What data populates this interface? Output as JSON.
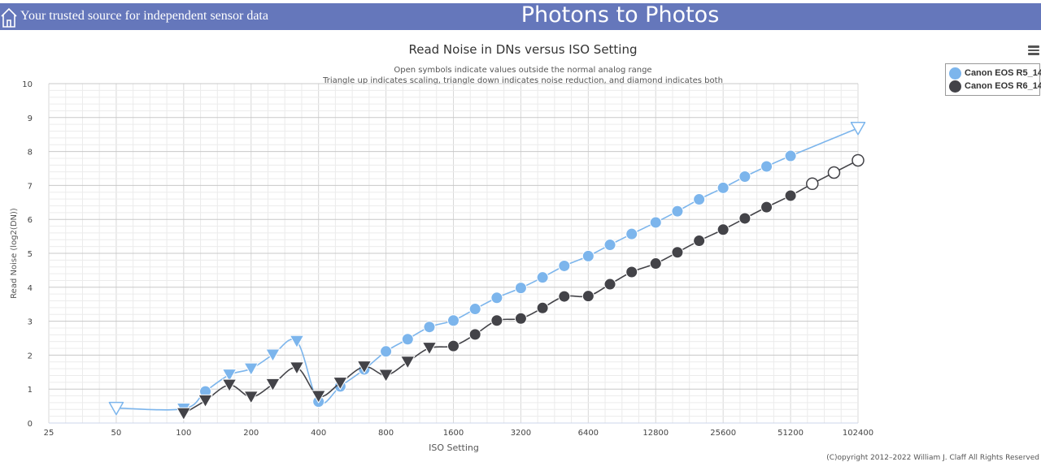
{
  "header": {
    "tagline": "Your trusted source for independent sensor data",
    "site_title": "Photons to Photos"
  },
  "copyright": "(C)opyright 2012–2022 William J. Claff All Rights Reserved",
  "colors": {
    "banner": "#6577bb",
    "r5": "#7cb5ec",
    "r6": "#434348"
  },
  "chart_data": {
    "type": "line",
    "title": "Read Noise in DNs versus ISO Setting",
    "subtitle_lines": [
      "Open symbols indicate values outside the normal analog range",
      "Triangle up indicates scaling, triangle down indicates noise reduction, and diamond indicates both"
    ],
    "xlabel": "ISO Setting",
    "ylabel": "Read Noise (log2(DN))",
    "x_scale": "log2",
    "xlim": [
      25,
      102400
    ],
    "ylim": [
      0,
      10
    ],
    "x_ticks": [
      "25",
      "50",
      "100",
      "200",
      "400",
      "800",
      "1600",
      "3200",
      "6400",
      "12800",
      "25600",
      "51200",
      "102400"
    ],
    "y_ticks": [
      "0",
      "1",
      "2",
      "3",
      "4",
      "5",
      "6",
      "7",
      "8",
      "9",
      "10"
    ],
    "grid": true,
    "legend": {
      "position": "top-right"
    },
    "series": [
      {
        "name": "Canon EOS R5_14",
        "color": "#7cb5ec",
        "points": [
          {
            "x": 50,
            "y": 0.44,
            "m": "tri-down",
            "open": true
          },
          {
            "x": 100,
            "y": 0.42,
            "m": "tri-down",
            "open": false
          },
          {
            "x": 125,
            "y": 0.93,
            "m": "circle",
            "open": false
          },
          {
            "x": 160,
            "y": 1.42,
            "m": "tri-down",
            "open": false
          },
          {
            "x": 200,
            "y": 1.6,
            "m": "tri-down",
            "open": false
          },
          {
            "x": 250,
            "y": 2.01,
            "m": "tri-down",
            "open": false
          },
          {
            "x": 320,
            "y": 2.41,
            "m": "tri-down",
            "open": false
          },
          {
            "x": 400,
            "y": 0.63,
            "m": "circle",
            "open": false
          },
          {
            "x": 500,
            "y": 1.08,
            "m": "circle",
            "open": false
          },
          {
            "x": 640,
            "y": 1.58,
            "m": "circle",
            "open": false
          },
          {
            "x": 800,
            "y": 2.11,
            "m": "circle",
            "open": false
          },
          {
            "x": 1000,
            "y": 2.47,
            "m": "circle",
            "open": false
          },
          {
            "x": 1250,
            "y": 2.83,
            "m": "circle",
            "open": false
          },
          {
            "x": 1600,
            "y": 3.02,
            "m": "circle",
            "open": false
          },
          {
            "x": 2000,
            "y": 3.36,
            "m": "circle",
            "open": false
          },
          {
            "x": 2500,
            "y": 3.69,
            "m": "circle",
            "open": false
          },
          {
            "x": 3200,
            "y": 3.98,
            "m": "circle",
            "open": false
          },
          {
            "x": 4000,
            "y": 4.29,
            "m": "circle",
            "open": false
          },
          {
            "x": 5000,
            "y": 4.63,
            "m": "circle",
            "open": false
          },
          {
            "x": 6400,
            "y": 4.92,
            "m": "circle",
            "open": false
          },
          {
            "x": 8000,
            "y": 5.25,
            "m": "circle",
            "open": false
          },
          {
            "x": 10000,
            "y": 5.57,
            "m": "circle",
            "open": false
          },
          {
            "x": 12800,
            "y": 5.91,
            "m": "circle",
            "open": false
          },
          {
            "x": 16000,
            "y": 6.24,
            "m": "circle",
            "open": false
          },
          {
            "x": 20000,
            "y": 6.59,
            "m": "circle",
            "open": false
          },
          {
            "x": 25600,
            "y": 6.93,
            "m": "circle",
            "open": false
          },
          {
            "x": 32000,
            "y": 7.26,
            "m": "circle",
            "open": false
          },
          {
            "x": 40000,
            "y": 7.56,
            "m": "circle",
            "open": false
          },
          {
            "x": 51200,
            "y": 7.87,
            "m": "circle",
            "open": false
          },
          {
            "x": 102400,
            "y": 8.69,
            "m": "tri-down",
            "open": true
          }
        ]
      },
      {
        "name": "Canon EOS R6_14",
        "color": "#434348",
        "points": [
          {
            "x": 100,
            "y": 0.28,
            "m": "tri-down",
            "open": false
          },
          {
            "x": 125,
            "y": 0.66,
            "m": "tri-down",
            "open": false
          },
          {
            "x": 160,
            "y": 1.12,
            "m": "tri-down",
            "open": false
          },
          {
            "x": 200,
            "y": 0.77,
            "m": "tri-down",
            "open": false
          },
          {
            "x": 250,
            "y": 1.14,
            "m": "tri-down",
            "open": false
          },
          {
            "x": 320,
            "y": 1.63,
            "m": "tri-down",
            "open": false
          },
          {
            "x": 400,
            "y": 0.79,
            "m": "tri-down",
            "open": false
          },
          {
            "x": 500,
            "y": 1.18,
            "m": "tri-down",
            "open": false
          },
          {
            "x": 640,
            "y": 1.66,
            "m": "tri-down",
            "open": false
          },
          {
            "x": 800,
            "y": 1.41,
            "m": "tri-down",
            "open": false
          },
          {
            "x": 1000,
            "y": 1.8,
            "m": "tri-down",
            "open": false
          },
          {
            "x": 1250,
            "y": 2.21,
            "m": "tri-down",
            "open": false
          },
          {
            "x": 1600,
            "y": 2.27,
            "m": "circle",
            "open": false
          },
          {
            "x": 2000,
            "y": 2.61,
            "m": "circle",
            "open": false
          },
          {
            "x": 2500,
            "y": 3.02,
            "m": "circle",
            "open": false
          },
          {
            "x": 3200,
            "y": 3.08,
            "m": "circle",
            "open": false
          },
          {
            "x": 4000,
            "y": 3.39,
            "m": "circle",
            "open": false
          },
          {
            "x": 5000,
            "y": 3.73,
            "m": "circle",
            "open": false
          },
          {
            "x": 6400,
            "y": 3.74,
            "m": "circle",
            "open": false
          },
          {
            "x": 8000,
            "y": 4.09,
            "m": "circle",
            "open": false
          },
          {
            "x": 10000,
            "y": 4.45,
            "m": "circle",
            "open": false
          },
          {
            "x": 12800,
            "y": 4.7,
            "m": "circle",
            "open": false
          },
          {
            "x": 16000,
            "y": 5.03,
            "m": "circle",
            "open": false
          },
          {
            "x": 20000,
            "y": 5.37,
            "m": "circle",
            "open": false
          },
          {
            "x": 25600,
            "y": 5.7,
            "m": "circle",
            "open": false
          },
          {
            "x": 32000,
            "y": 6.03,
            "m": "circle",
            "open": false
          },
          {
            "x": 40000,
            "y": 6.36,
            "m": "circle",
            "open": false
          },
          {
            "x": 51200,
            "y": 6.7,
            "m": "circle",
            "open": false
          },
          {
            "x": 64000,
            "y": 7.05,
            "m": "circle",
            "open": true
          },
          {
            "x": 80000,
            "y": 7.38,
            "m": "circle",
            "open": true
          },
          {
            "x": 102400,
            "y": 7.74,
            "m": "circle",
            "open": true
          }
        ]
      }
    ]
  }
}
